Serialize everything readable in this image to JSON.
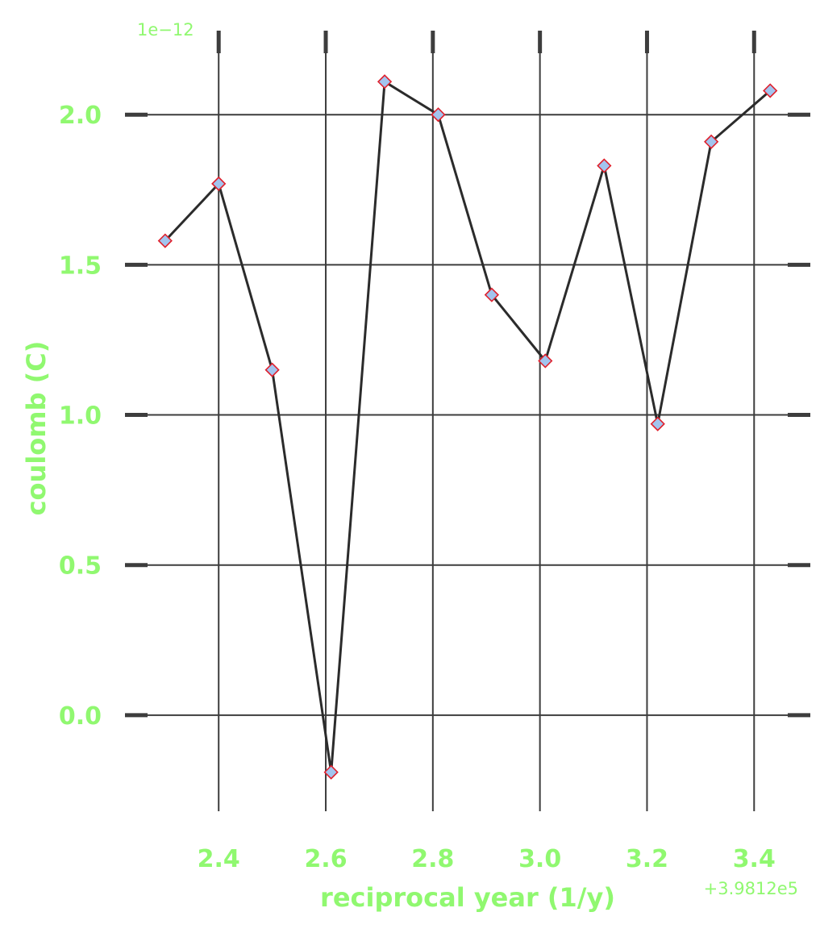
{
  "chart_data": {
    "type": "line",
    "title": "",
    "xlabel": "reciprocal year (1/y)",
    "ylabel": "coulomb (C)",
    "x_offset_text": "+3.9812e5",
    "y_multiplier_text": "1e−12",
    "x_offset_value": 398120,
    "y_multiplier_value": 1e-12,
    "xlim": [
      2.225,
      3.505
    ],
    "ylim": [
      -0.32,
      2.28
    ],
    "x_ticks": [
      2.4,
      2.6,
      2.8,
      3.0,
      3.2,
      3.4
    ],
    "x_tick_labels": [
      "2.4",
      "2.6",
      "2.8",
      "3.0",
      "3.2",
      "3.4"
    ],
    "y_ticks": [
      0.0,
      0.5,
      1.0,
      1.5,
      2.0
    ],
    "y_tick_labels": [
      "0.0",
      "0.5",
      "1.0",
      "1.5",
      "2.0"
    ],
    "grid": true,
    "colors": {
      "text": "#90f870",
      "line": "#2b2b2b",
      "grid": "#3d3d3d",
      "marker_fill": "#a2c4ee",
      "marker_edge": "#e0202c"
    },
    "series": [
      {
        "marker": "diamond",
        "x": [
          2.3,
          2.4,
          2.5,
          2.61,
          2.71,
          2.81,
          2.91,
          3.01,
          3.12,
          3.22,
          3.32,
          3.43
        ],
        "y": [
          1.58,
          1.77,
          1.15,
          -0.19,
          2.11,
          2.0,
          1.4,
          1.18,
          1.83,
          0.97,
          1.91,
          2.08
        ]
      }
    ]
  }
}
